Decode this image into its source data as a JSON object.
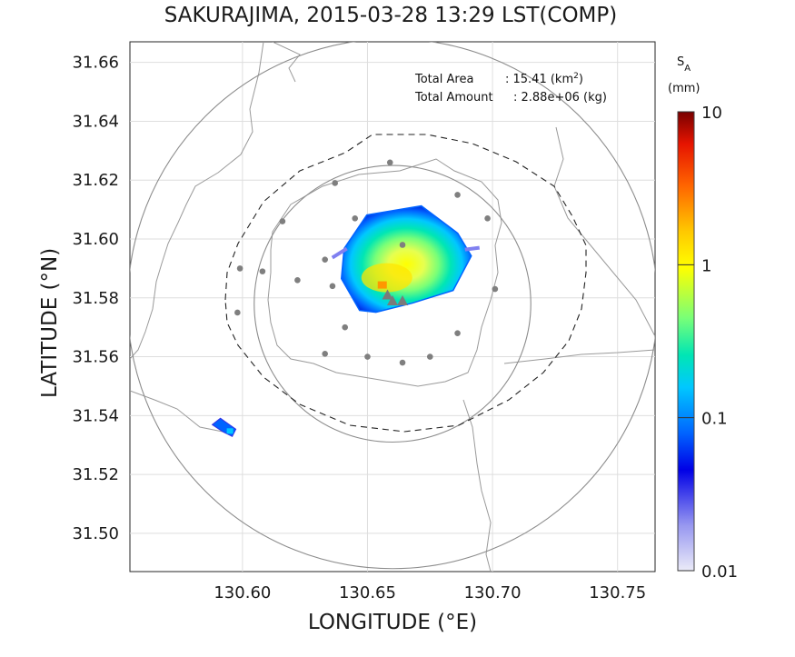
{
  "chart_data": {
    "type": "heatmap",
    "title": "SAKURAJIMA, 2015-03-28 13:29 LST(COMP)",
    "xlabel": "LONGITUDE (°E)",
    "ylabel": "LATITUDE (°N)",
    "xlim": [
      130.555,
      130.765
    ],
    "ylim": [
      31.487,
      31.667
    ],
    "xticks": [
      "130.60",
      "130.65",
      "130.70",
      "130.75"
    ],
    "yticks": [
      "31.50",
      "31.52",
      "31.54",
      "31.56",
      "31.58",
      "31.60",
      "31.62",
      "31.64",
      "31.66"
    ],
    "grid": true,
    "annotations": {
      "area_label": "Total Area",
      "area_value": ": 15.41 (km",
      "area_unit_sup": "2",
      "area_close": ")",
      "amount_label": "Total Amount",
      "amount_value": ": 2.88e+06 (kg)"
    },
    "colorbar": {
      "label_main": "S",
      "label_sub": "A",
      "unit": "(mm)",
      "scale": "log",
      "range": [
        0.01,
        10
      ],
      "ticks": [
        "10",
        "1",
        "0.1",
        "0.01"
      ],
      "tick_values": [
        10,
        1,
        0.1,
        0.01
      ],
      "colormap": [
        "#ebebf8",
        "#9696f0",
        "#0000e6",
        "#0064ff",
        "#00c8ff",
        "#00e6b4",
        "#78ff78",
        "#ffff00",
        "#ffc800",
        "#ff6400",
        "#e61400",
        "#780000"
      ]
    },
    "circles": [
      {
        "center": [
          130.66,
          31.578
        ],
        "radius_deg_lat": 0.09,
        "style": "solid"
      },
      {
        "center": [
          130.66,
          31.578
        ],
        "radius_deg_lat": 0.047,
        "style": "solid"
      }
    ],
    "vents": [
      {
        "lon": 130.658,
        "lat": 31.581
      },
      {
        "lon": 130.66,
        "lat": 31.579
      },
      {
        "lon": 130.664,
        "lat": 31.579
      }
    ],
    "stations": [
      [
        130.659,
        31.626
      ],
      [
        130.686,
        31.615
      ],
      [
        130.637,
        31.619
      ],
      [
        130.698,
        31.607
      ],
      [
        130.616,
        31.606
      ],
      [
        130.645,
        31.607
      ],
      [
        130.664,
        31.598
      ],
      [
        130.633,
        31.593
      ],
      [
        130.599,
        31.59
      ],
      [
        130.608,
        31.589
      ],
      [
        130.622,
        31.586
      ],
      [
        130.636,
        31.584
      ],
      [
        130.701,
        31.583
      ],
      [
        130.598,
        31.575
      ],
      [
        130.641,
        31.57
      ],
      [
        130.686,
        31.568
      ],
      [
        130.633,
        31.561
      ],
      [
        130.65,
        31.56
      ],
      [
        130.675,
        31.56
      ],
      [
        130.664,
        31.558
      ]
    ],
    "plume": {
      "peak_lon": 130.657,
      "peak_lat": 31.585,
      "value_range": [
        0.02,
        1.5
      ],
      "secondary": {
        "lon": 130.593,
        "lat": 31.536
      }
    }
  }
}
